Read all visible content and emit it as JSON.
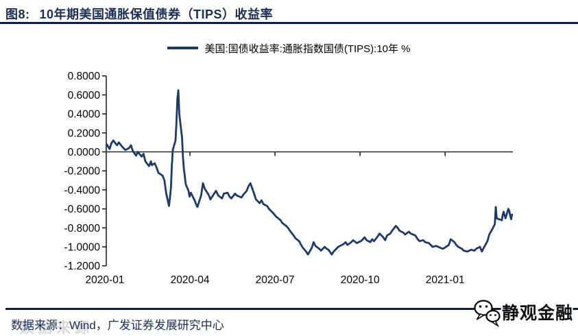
{
  "header": {
    "title_prefix": "图8:",
    "title": "10年期美国通胀保值债券（TIPS）收益率"
  },
  "legend": {
    "label": "美国:国债收益率:通胀指数国债(TIPS):10年 %",
    "swatch_color": "#1B3A6B"
  },
  "chart_data": {
    "type": "line",
    "title": "10年期美国通胀保值债券（TIPS）收益率",
    "xlabel": "",
    "ylabel": "%",
    "ylim": [
      -1.2,
      0.8
    ],
    "y_tick_step": 0.2,
    "grid": false,
    "legend_position": "top-center",
    "y_tick_labels": [
      "0.8000",
      "0.6000",
      "0.4000",
      "0.2000",
      "0.0000",
      "-0.2000",
      "-0.4000",
      "-0.6000",
      "-0.8000",
      "-1.0000",
      "-1.2000"
    ],
    "x_tick_labels": [
      "2020-01",
      "2020-04",
      "2020-07",
      "2020-10",
      "2021-01"
    ],
    "x_tick_months": [
      0,
      3,
      6,
      9,
      12
    ],
    "series": [
      {
        "name": "美国:国债收益率:通胀指数国债(TIPS):10年 %",
        "color": "#1B3A6B",
        "points": [
          [
            "2020-01-01",
            0.06
          ],
          [
            "2020-01-03",
            0.08
          ],
          [
            "2020-01-06",
            0.03
          ],
          [
            "2020-01-08",
            0.09
          ],
          [
            "2020-01-10",
            0.12
          ],
          [
            "2020-01-14",
            0.07
          ],
          [
            "2020-01-16",
            0.1
          ],
          [
            "2020-01-20",
            0.05
          ],
          [
            "2020-01-23",
            0.02
          ],
          [
            "2020-01-27",
            0.04
          ],
          [
            "2020-01-29",
            0.07
          ],
          [
            "2020-01-31",
            0.01
          ],
          [
            "2020-02-04",
            -0.04
          ],
          [
            "2020-02-06",
            0.0
          ],
          [
            "2020-02-10",
            -0.05
          ],
          [
            "2020-02-12",
            -0.02
          ],
          [
            "2020-02-14",
            -0.1
          ],
          [
            "2020-02-18",
            -0.15
          ],
          [
            "2020-02-20",
            -0.1
          ],
          [
            "2020-02-21",
            -0.14
          ],
          [
            "2020-02-24",
            -0.12
          ],
          [
            "2020-02-26",
            -0.16
          ],
          [
            "2020-02-28",
            -0.22
          ],
          [
            "2020-03-02",
            -0.25
          ],
          [
            "2020-03-04",
            -0.3
          ],
          [
            "2020-03-06",
            -0.44
          ],
          [
            "2020-03-09",
            -0.57
          ],
          [
            "2020-03-10",
            -0.48
          ],
          [
            "2020-03-11",
            -0.38
          ],
          [
            "2020-03-12",
            -0.15
          ],
          [
            "2020-03-13",
            0.02
          ],
          [
            "2020-03-16",
            0.12
          ],
          [
            "2020-03-17",
            0.32
          ],
          [
            "2020-03-18",
            0.56
          ],
          [
            "2020-03-19",
            0.65
          ],
          [
            "2020-03-20",
            0.4
          ],
          [
            "2020-03-23",
            0.15
          ],
          [
            "2020-03-24",
            -0.06
          ],
          [
            "2020-03-25",
            -0.18
          ],
          [
            "2020-03-26",
            -0.26
          ],
          [
            "2020-03-27",
            -0.34
          ],
          [
            "2020-03-30",
            -0.41
          ],
          [
            "2020-03-31",
            -0.47
          ],
          [
            "2020-04-02",
            -0.43
          ],
          [
            "2020-04-06",
            -0.51
          ],
          [
            "2020-04-08",
            -0.56
          ],
          [
            "2020-04-09",
            -0.58
          ],
          [
            "2020-04-13",
            -0.46
          ],
          [
            "2020-04-15",
            -0.33
          ],
          [
            "2020-04-17",
            -0.39
          ],
          [
            "2020-04-21",
            -0.45
          ],
          [
            "2020-04-23",
            -0.5
          ],
          [
            "2020-04-27",
            -0.44
          ],
          [
            "2020-04-29",
            -0.41
          ],
          [
            "2020-05-01",
            -0.46
          ],
          [
            "2020-05-05",
            -0.49
          ],
          [
            "2020-05-07",
            -0.44
          ],
          [
            "2020-05-11",
            -0.43
          ],
          [
            "2020-05-13",
            -0.47
          ],
          [
            "2020-05-15",
            -0.49
          ],
          [
            "2020-05-19",
            -0.44
          ],
          [
            "2020-05-21",
            -0.46
          ],
          [
            "2020-05-26",
            -0.48
          ],
          [
            "2020-05-28",
            -0.45
          ],
          [
            "2020-06-01",
            -0.41
          ],
          [
            "2020-06-03",
            -0.36
          ],
          [
            "2020-06-05",
            -0.33
          ],
          [
            "2020-06-09",
            -0.44
          ],
          [
            "2020-06-11",
            -0.5
          ],
          [
            "2020-06-15",
            -0.54
          ],
          [
            "2020-06-17",
            -0.51
          ],
          [
            "2020-06-19",
            -0.55
          ],
          [
            "2020-06-23",
            -0.57
          ],
          [
            "2020-06-25",
            -0.6
          ],
          [
            "2020-06-30",
            -0.65
          ],
          [
            "2020-07-02",
            -0.68
          ],
          [
            "2020-07-07",
            -0.72
          ],
          [
            "2020-07-09",
            -0.75
          ],
          [
            "2020-07-13",
            -0.78
          ],
          [
            "2020-07-15",
            -0.8
          ],
          [
            "2020-07-17",
            -0.83
          ],
          [
            "2020-07-21",
            -0.88
          ],
          [
            "2020-07-23",
            -0.91
          ],
          [
            "2020-07-27",
            -0.94
          ],
          [
            "2020-07-29",
            -0.98
          ],
          [
            "2020-07-31",
            -1.01
          ],
          [
            "2020-08-04",
            -1.05
          ],
          [
            "2020-08-06",
            -1.08
          ],
          [
            "2020-08-10",
            -1.01
          ],
          [
            "2020-08-12",
            -0.95
          ],
          [
            "2020-08-14",
            -0.99
          ],
          [
            "2020-08-18",
            -1.02
          ],
          [
            "2020-08-20",
            -1.04
          ],
          [
            "2020-08-24",
            -1.0
          ],
          [
            "2020-08-26",
            -1.02
          ],
          [
            "2020-08-28",
            -1.03
          ],
          [
            "2020-09-01",
            -1.08
          ],
          [
            "2020-09-03",
            -1.05
          ],
          [
            "2020-09-08",
            -1.0
          ],
          [
            "2020-09-10",
            -0.99
          ],
          [
            "2020-09-14",
            -0.97
          ],
          [
            "2020-09-16",
            -0.95
          ],
          [
            "2020-09-18",
            -0.98
          ],
          [
            "2020-09-22",
            -0.95
          ],
          [
            "2020-09-24",
            -0.93
          ],
          [
            "2020-09-28",
            -0.96
          ],
          [
            "2020-09-30",
            -0.95
          ],
          [
            "2020-10-02",
            -0.94
          ],
          [
            "2020-10-06",
            -0.9
          ],
          [
            "2020-10-08",
            -0.93
          ],
          [
            "2020-10-12",
            -0.95
          ],
          [
            "2020-10-14",
            -0.92
          ],
          [
            "2020-10-16",
            -0.94
          ],
          [
            "2020-10-20",
            -0.89
          ],
          [
            "2020-10-22",
            -0.86
          ],
          [
            "2020-10-26",
            -0.9
          ],
          [
            "2020-10-28",
            -0.93
          ],
          [
            "2020-10-30",
            -0.88
          ],
          [
            "2020-11-03",
            -0.86
          ],
          [
            "2020-11-05",
            -0.83
          ],
          [
            "2020-11-09",
            -0.78
          ],
          [
            "2020-11-11",
            -0.8
          ],
          [
            "2020-11-13",
            -0.83
          ],
          [
            "2020-11-17",
            -0.85
          ],
          [
            "2020-11-19",
            -0.87
          ],
          [
            "2020-11-23",
            -0.84
          ],
          [
            "2020-11-25",
            -0.86
          ],
          [
            "2020-11-30",
            -0.88
          ],
          [
            "2020-12-02",
            -0.92
          ],
          [
            "2020-12-04",
            -0.94
          ],
          [
            "2020-12-08",
            -0.93
          ],
          [
            "2020-12-10",
            -0.95
          ],
          [
            "2020-12-14",
            -0.96
          ],
          [
            "2020-12-16",
            -0.98
          ],
          [
            "2020-12-18",
            -1.0
          ],
          [
            "2020-12-22",
            -0.99
          ],
          [
            "2020-12-24",
            -1.0
          ],
          [
            "2020-12-29",
            -1.02
          ],
          [
            "2020-12-31",
            -1.01
          ],
          [
            "2021-01-05",
            -0.98
          ],
          [
            "2021-01-07",
            -0.92
          ],
          [
            "2021-01-11",
            -0.95
          ],
          [
            "2021-01-13",
            -0.98
          ],
          [
            "2021-01-15",
            -1.0
          ],
          [
            "2021-01-19",
            -1.02
          ],
          [
            "2021-01-21",
            -1.04
          ],
          [
            "2021-01-25",
            -1.05
          ],
          [
            "2021-01-27",
            -1.04
          ],
          [
            "2021-01-29",
            -1.03
          ],
          [
            "2021-02-02",
            -1.04
          ],
          [
            "2021-02-04",
            -1.02
          ],
          [
            "2021-02-08",
            -1.0
          ],
          [
            "2021-02-10",
            -1.05
          ],
          [
            "2021-02-12",
            -1.01
          ],
          [
            "2021-02-16",
            -0.94
          ],
          [
            "2021-02-18",
            -0.87
          ],
          [
            "2021-02-22",
            -0.8
          ],
          [
            "2021-02-24",
            -0.76
          ],
          [
            "2021-02-25",
            -0.58
          ],
          [
            "2021-02-26",
            -0.7
          ],
          [
            "2021-03-01",
            -0.72
          ],
          [
            "2021-03-02",
            -0.66
          ],
          [
            "2021-03-03",
            -0.63
          ],
          [
            "2021-03-04",
            -0.67
          ],
          [
            "2021-03-05",
            -0.7
          ],
          [
            "2021-03-08",
            -0.6
          ],
          [
            "2021-03-09",
            -0.62
          ],
          [
            "2021-03-10",
            -0.67
          ],
          [
            "2021-03-11",
            -0.71
          ],
          [
            "2021-03-12",
            -0.66
          ]
        ]
      }
    ]
  },
  "footer": {
    "source": "数据来源：Wind，广发证券发展研究中心",
    "ghost": "数据来源",
    "watermark": "静观金融"
  },
  "colors": {
    "accent_navy": "#1A2E56",
    "line_navy": "#1B3A6B",
    "axis": "#000000",
    "rule": "#0E1F3D"
  }
}
